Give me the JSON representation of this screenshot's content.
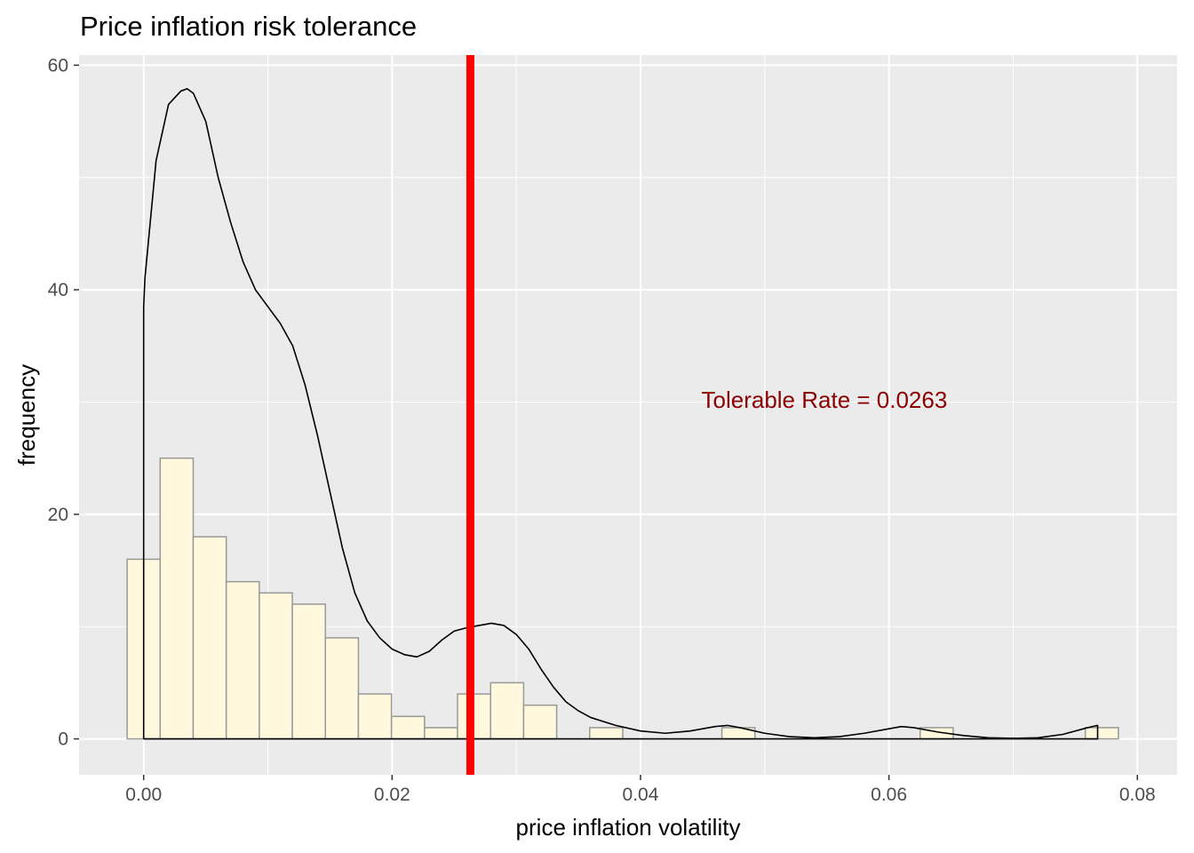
{
  "chart_data": {
    "type": "bar",
    "title": "Price inflation risk tolerance",
    "xlabel": "price inflation volatility",
    "ylabel": "frequency",
    "xlim": [
      -0.0052,
      0.0832
    ],
    "ylim": [
      -3.2,
      60.9
    ],
    "x_ticks": [
      {
        "value": 0.0,
        "label": "0.00"
      },
      {
        "value": 0.02,
        "label": "0.02"
      },
      {
        "value": 0.04,
        "label": "0.04"
      },
      {
        "value": 0.06,
        "label": "0.06"
      },
      {
        "value": 0.08,
        "label": "0.08"
      }
    ],
    "y_ticks": [
      {
        "value": 0,
        "label": "0"
      },
      {
        "value": 20,
        "label": "20"
      },
      {
        "value": 40,
        "label": "40"
      },
      {
        "value": 60,
        "label": "60"
      }
    ],
    "grid": true,
    "panel_background": "#EBEBEB",
    "histogram": {
      "bin_width": 0.00266,
      "bin_start": -0.00133,
      "counts": [
        16,
        25,
        18,
        14,
        13,
        12,
        9,
        4,
        2,
        1,
        4,
        5,
        3,
        0,
        1,
        0,
        0,
        0,
        1,
        0,
        0,
        0,
        0,
        0,
        1,
        0,
        0,
        0,
        0,
        1
      ],
      "fill": "#FFF8DC",
      "stroke": "#999999"
    },
    "density_curve": {
      "color": "#000000",
      "x": [
        0.0,
        0.0001,
        0.001,
        0.002,
        0.003,
        0.0035,
        0.004,
        0.005,
        0.006,
        0.007,
        0.008,
        0.009,
        0.01,
        0.011,
        0.012,
        0.013,
        0.014,
        0.015,
        0.016,
        0.017,
        0.018,
        0.019,
        0.02,
        0.021,
        0.022,
        0.023,
        0.024,
        0.025,
        0.026,
        0.027,
        0.028,
        0.029,
        0.03,
        0.031,
        0.032,
        0.033,
        0.034,
        0.035,
        0.036,
        0.038,
        0.04,
        0.042,
        0.044,
        0.046,
        0.047,
        0.048,
        0.05,
        0.052,
        0.054,
        0.056,
        0.058,
        0.06,
        0.061,
        0.062,
        0.064,
        0.066,
        0.068,
        0.07,
        0.072,
        0.074,
        0.076,
        0.0768,
        0.0768
      ],
      "y": [
        38.5,
        41,
        51.5,
        56.5,
        57.7,
        57.9,
        57.5,
        55,
        50,
        46,
        42.5,
        40,
        38.5,
        37,
        35,
        31.5,
        27,
        22,
        17,
        13,
        10.5,
        9,
        8,
        7.5,
        7.3,
        7.8,
        8.8,
        9.6,
        9.9,
        10.1,
        10.3,
        10.1,
        9.3,
        8,
        6.2,
        4.6,
        3.3,
        2.5,
        1.9,
        1.2,
        0.7,
        0.5,
        0.7,
        1.1,
        1.2,
        1.0,
        0.5,
        0.2,
        0.1,
        0.2,
        0.5,
        0.9,
        1.1,
        1.0,
        0.6,
        0.3,
        0.1,
        0.05,
        0.1,
        0.4,
        1.0,
        1.2,
        0
      ]
    },
    "reference_line": {
      "x": 0.0263,
      "color": "#FF0000"
    },
    "annotation": {
      "text": "Tolerable Rate =  0.0263",
      "x": 0.0548,
      "y": 29.5,
      "color": "#8B0000"
    }
  }
}
